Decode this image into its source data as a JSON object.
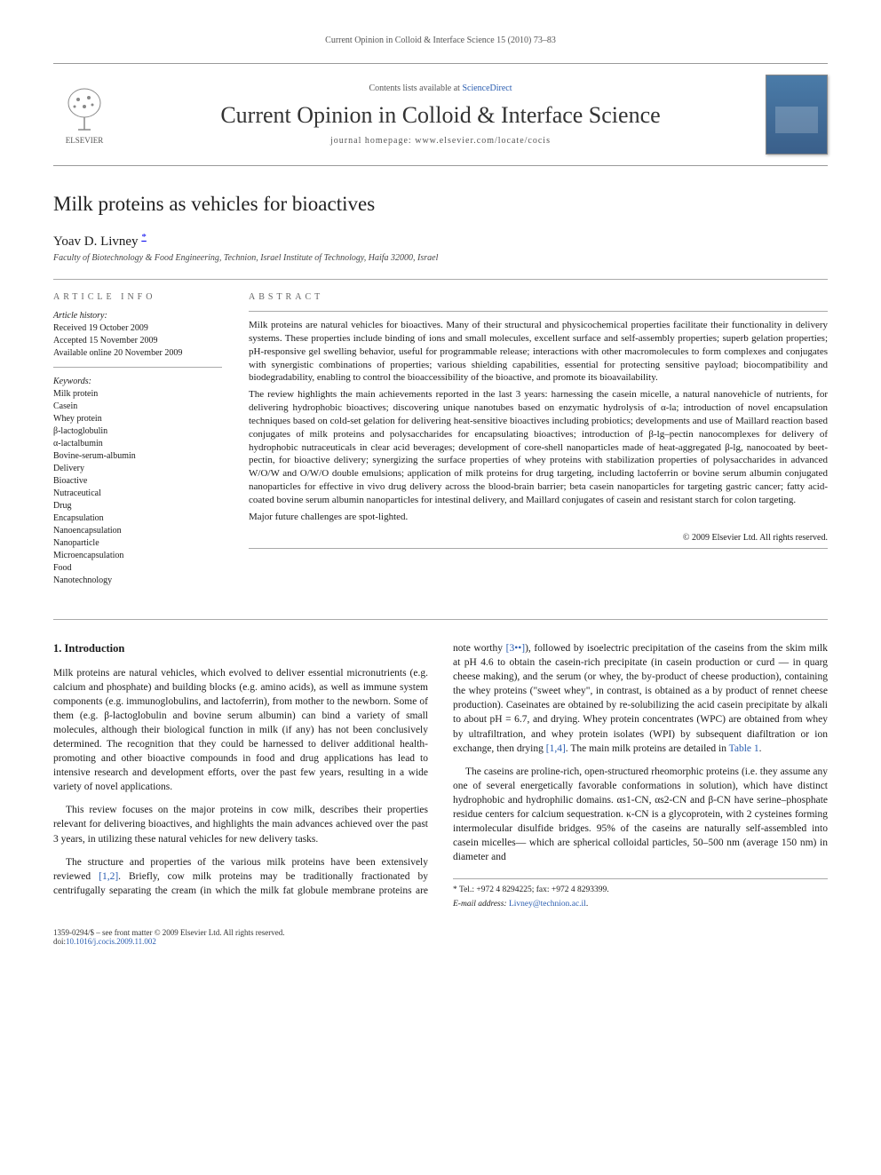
{
  "running_header": "Current Opinion in Colloid & Interface Science 15 (2010) 73–83",
  "masthead": {
    "publisher_name": "ELSEVIER",
    "contents_prefix": "Contents lists available at ",
    "contents_link": "ScienceDirect",
    "journal_name": "Current Opinion in Colloid & Interface Science",
    "homepage_prefix": "journal homepage: ",
    "homepage_url": "www.elsevier.com/locate/cocis",
    "logo_color": "#e67817",
    "cover_colors": {
      "top": "#4a7ba8",
      "bottom": "#3a5f8a"
    }
  },
  "article": {
    "title": "Milk proteins as vehicles for bioactives",
    "author": "Yoav D. Livney",
    "author_marker": "*",
    "affiliation": "Faculty of Biotechnology & Food Engineering, Technion, Israel Institute of Technology, Haifa 32000, Israel"
  },
  "article_info": {
    "label": "article info",
    "history_title": "Article history:",
    "history": {
      "received": "Received 19 October 2009",
      "accepted": "Accepted 15 November 2009",
      "online": "Available online 20 November 2009"
    },
    "keywords_title": "Keywords:",
    "keywords": [
      "Milk protein",
      "Casein",
      "Whey protein",
      "β-lactoglobulin",
      "α-lactalbumin",
      "Bovine-serum-albumin",
      "Delivery",
      "Bioactive",
      "Nutraceutical",
      "Drug",
      "Encapsulation",
      "Nanoencapsulation",
      "Nanoparticle",
      "Microencapsulation",
      "Food",
      "Nanotechnology"
    ]
  },
  "abstract": {
    "label": "abstract",
    "paragraphs": [
      "Milk proteins are natural vehicles for bioactives. Many of their structural and physicochemical properties facilitate their functionality in delivery systems. These properties include binding of ions and small molecules, excellent surface and self-assembly properties; superb gelation properties; pH-responsive gel swelling behavior, useful for programmable release; interactions with other macromolecules to form complexes and conjugates with synergistic combinations of properties; various shielding capabilities, essential for protecting sensitive payload; biocompatibility and biodegradability, enabling to control the bioaccessibility of the bioactive, and promote its bioavailability.",
      "The review highlights the main achievements reported in the last 3 years: harnessing the casein micelle, a natural nanovehicle of nutrients, for delivering hydrophobic bioactives; discovering unique nanotubes based on enzymatic hydrolysis of α-la; introduction of novel encapsulation techniques based on cold-set gelation for delivering heat-sensitive bioactives including probiotics; developments and use of Maillard reaction based conjugates of milk proteins and polysaccharides for encapsulating bioactives; introduction of β-lg–pectin nanocomplexes for delivery of hydrophobic nutraceuticals in clear acid beverages; development of core-shell nanoparticles made of heat-aggregated β-lg, nanocoated by beet-pectin, for bioactive delivery; synergizing the surface properties of whey proteins with stabilization properties of polysaccharides in advanced W/O/W and O/W/O double emulsions; application of milk proteins for drug targeting, including lactoferrin or bovine serum albumin conjugated nanoparticles for effective in vivo drug delivery across the blood-brain barrier; beta casein nanoparticles for targeting gastric cancer; fatty acid-coated bovine serum albumin nanoparticles for intestinal delivery, and Maillard conjugates of casein and resistant starch for colon targeting.",
      "Major future challenges are spot-lighted."
    ],
    "copyright": "© 2009 Elsevier Ltd. All rights reserved."
  },
  "body": {
    "section_heading": "1. Introduction",
    "paragraphs": [
      "Milk proteins are natural vehicles, which evolved to deliver essential micronutrients (e.g. calcium and phosphate) and building blocks (e.g. amino acids), as well as immune system components (e.g. immunoglobulins, and lactoferrin), from mother to the newborn. Some of them (e.g. β-lactoglobulin and bovine serum albumin) can bind a variety of small molecules, although their biological function in milk (if any) has not been conclusively determined. The recognition that they could be harnessed to deliver additional health-promoting and other bioactive compounds in food and drug applications has lead to intensive research and development efforts, over the past few years, resulting in a wide variety of novel applications.",
      "This review focuses on the major proteins in cow milk, describes their properties relevant for delivering bioactives, and highlights the main advances achieved over the past 3 years, in utilizing these natural vehicles for new delivery tasks.",
      "The structure and properties of the various milk proteins have been extensively reviewed [1,2]. Briefly, cow milk proteins may be traditionally fractionated by centrifugally separating the cream (in which the milk fat globule membrane proteins are note worthy [3••]), followed by isoelectric precipitation of the caseins from the skim milk at pH 4.6 to obtain the casein-rich precipitate (in casein production or curd — in quarg cheese making), and the serum (or whey, the by-product of cheese production), containing the whey proteins (\"sweet whey\", in contrast, is obtained as a by product of rennet cheese production). Caseinates are obtained by re-solubilizing the acid casein precipitate by alkali to about pH = 6.7, and drying. Whey protein concentrates (WPC) are obtained from whey by ultrafiltration, and whey protein isolates (WPI) by subsequent diafiltration or ion exchange, then drying [1,4]. The main milk proteins are detailed in Table 1.",
      "The caseins are proline-rich, open-structured rheomorphic proteins (i.e. they assume any one of several energetically favorable conformations in solution), which have distinct hydrophobic and hydrophilic domains. αs1-CN, αs2-CN and β-CN have serine–phosphate residue centers for calcium sequestration. κ-CN is a glycoprotein, with 2 cysteines forming intermolecular disulfide bridges. 95% of the caseins are naturally self-assembled into casein micelles— which are spherical colloidal particles, 50–500 nm (average 150 nm) in diameter and"
    ],
    "refs": {
      "r12": "[1,2]",
      "r3": "[3••]",
      "r14": "[1,4]",
      "table1": "Table 1"
    }
  },
  "footnotes": {
    "corr": "* Tel.: +972 4 8294225; fax: +972 4 8293399.",
    "email_label": "E-mail address:",
    "email": "Livney@technion.ac.il"
  },
  "footer": {
    "issn_line": "1359-0294/$ – see front matter © 2009 Elsevier Ltd. All rights reserved.",
    "doi_prefix": "doi:",
    "doi": "10.1016/j.cocis.2009.11.002"
  },
  "colors": {
    "link": "#2a5db0",
    "text": "#1a1a1a",
    "rule": "#aaaaaa",
    "muted": "#555555"
  },
  "typography": {
    "body_fontsize_pt": 11.5,
    "abstract_fontsize_pt": 11,
    "title_fontsize_pt": 23,
    "journal_fontsize_pt": 26,
    "footnote_fontsize_pt": 9.5
  }
}
